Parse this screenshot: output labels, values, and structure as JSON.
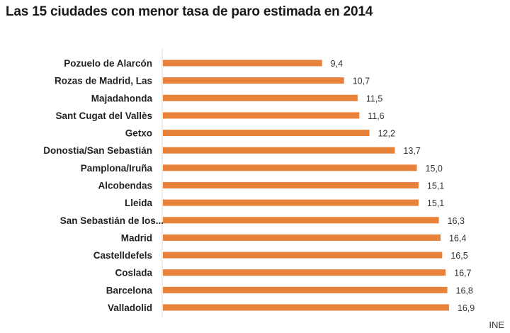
{
  "chart_data": {
    "type": "bar",
    "orientation": "horizontal",
    "title": "Las 15 ciudades con menor tasa de paro estimada en 2014",
    "xlabel": "",
    "ylabel": "",
    "xlim": [
      0,
      17.5
    ],
    "grid": false,
    "legend": "none",
    "bar_color": "#E8823A",
    "categories": [
      "Pozuelo de Alarcón",
      "Rozas de Madrid, Las",
      "Majadahonda",
      "Sant Cugat del Vallès",
      "Getxo",
      "Donostia/San Sebastián",
      "Pamplona/Iruña",
      "Alcobendas",
      "Lleida",
      "San Sebastián de los...",
      "Madrid",
      "Castelldefels",
      "Coslada",
      "Barcelona",
      "Valladolid"
    ],
    "values": [
      9.4,
      10.7,
      11.5,
      11.6,
      12.2,
      13.7,
      15.0,
      15.1,
      15.1,
      16.3,
      16.4,
      16.5,
      16.7,
      16.8,
      16.9
    ],
    "data_labels": [
      "9,4",
      "10,7",
      "11,5",
      "11,6",
      "12,2",
      "13,7",
      "15,0",
      "15,1",
      "15,1",
      "16,3",
      "16,4",
      "16,5",
      "16,7",
      "16,8",
      "16,9"
    ],
    "source": "INE"
  }
}
